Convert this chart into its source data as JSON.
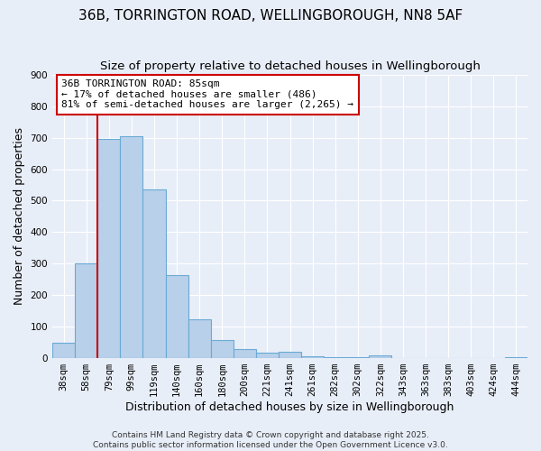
{
  "title": "36B, TORRINGTON ROAD, WELLINGBOROUGH, NN8 5AF",
  "subtitle": "Size of property relative to detached houses in Wellingborough",
  "xlabel": "Distribution of detached houses by size in Wellingborough",
  "ylabel": "Number of detached properties",
  "bar_labels": [
    "38sqm",
    "58sqm",
    "79sqm",
    "99sqm",
    "119sqm",
    "140sqm",
    "160sqm",
    "180sqm",
    "200sqm",
    "221sqm",
    "241sqm",
    "261sqm",
    "282sqm",
    "302sqm",
    "322sqm",
    "343sqm",
    "363sqm",
    "383sqm",
    "403sqm",
    "424sqm",
    "444sqm"
  ],
  "bar_values": [
    47,
    300,
    697,
    706,
    535,
    262,
    122,
    55,
    28,
    15,
    18,
    5,
    2,
    1,
    8,
    0,
    0,
    0,
    0,
    0,
    2
  ],
  "bar_color": "#b8d0ea",
  "bar_edgecolor": "#6aaad4",
  "vline_color": "#cc0000",
  "annotation_text": "36B TORRINGTON ROAD: 85sqm\n← 17% of detached houses are smaller (486)\n81% of semi-detached houses are larger (2,265) →",
  "annotation_box_facecolor": "#ffffff",
  "annotation_box_edgecolor": "#cc0000",
  "background_color": "#e8eef8",
  "grid_color": "#ffffff",
  "footer_text": "Contains HM Land Registry data © Crown copyright and database right 2025.\nContains public sector information licensed under the Open Government Licence v3.0.",
  "ylim": [
    0,
    900
  ],
  "yticks": [
    0,
    100,
    200,
    300,
    400,
    500,
    600,
    700,
    800,
    900
  ],
  "title_fontsize": 11,
  "subtitle_fontsize": 9.5,
  "xlabel_fontsize": 9,
  "ylabel_fontsize": 9,
  "tick_fontsize": 7.5,
  "footer_fontsize": 6.5,
  "annotation_fontsize": 8
}
